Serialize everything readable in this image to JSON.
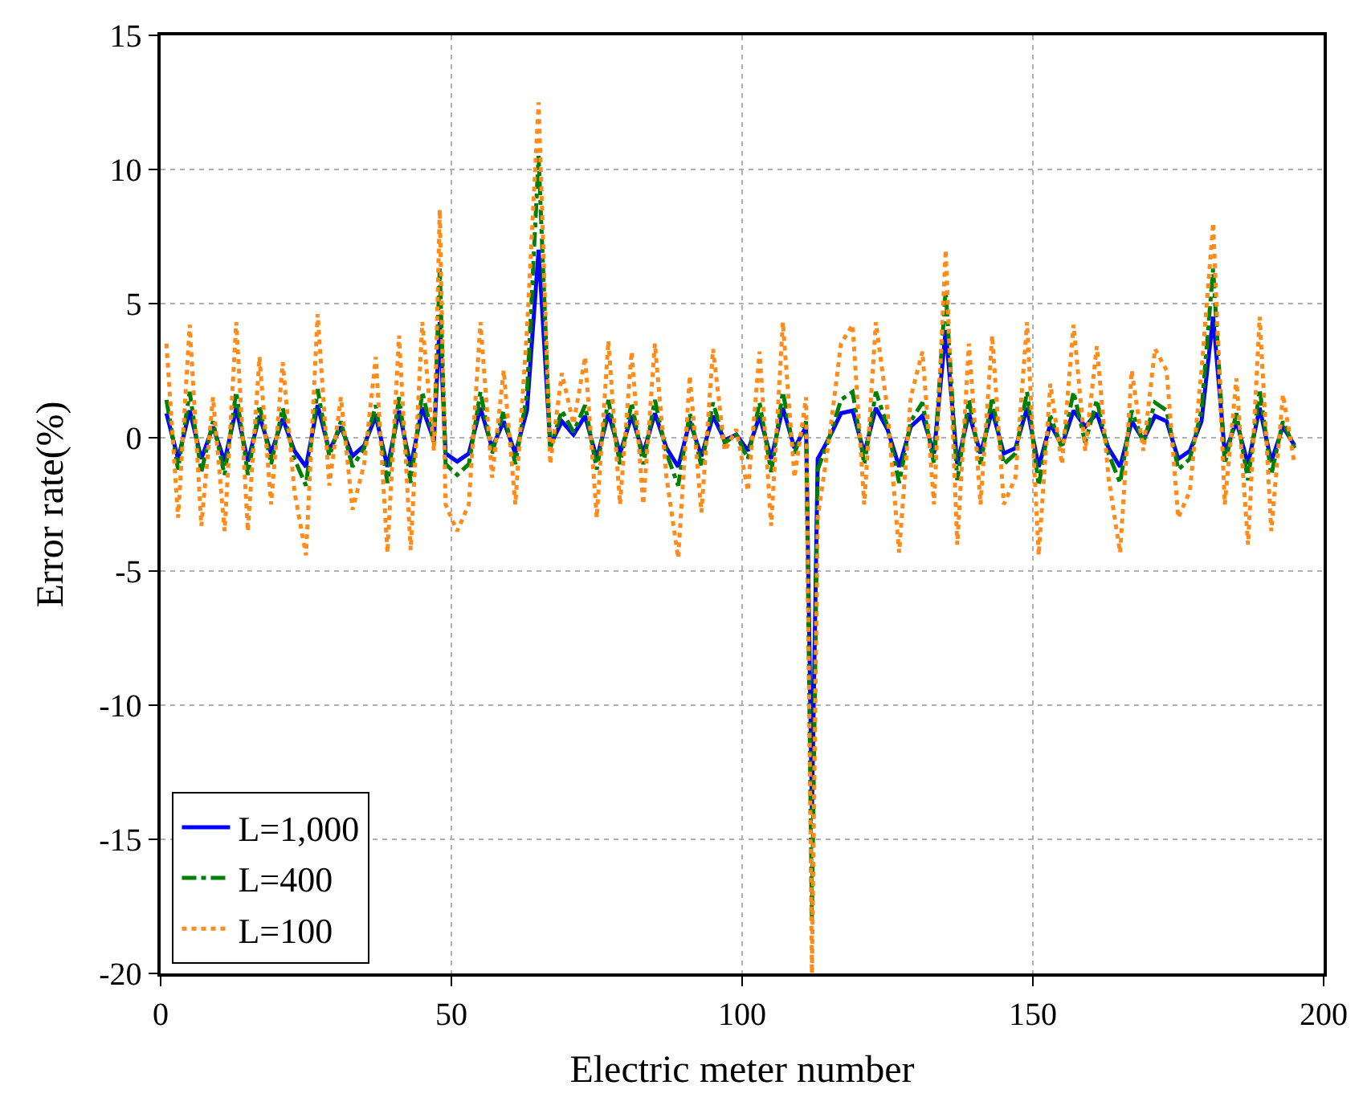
{
  "chart_data": {
    "type": "line",
    "xlabel": "Electric meter number",
    "ylabel": "Error rate(%)",
    "x": [
      1,
      3,
      5,
      7,
      9,
      11,
      13,
      15,
      17,
      19,
      21,
      23,
      25,
      27,
      29,
      31,
      33,
      35,
      37,
      39,
      41,
      43,
      45,
      47,
      48,
      49,
      51,
      53,
      55,
      57,
      59,
      61,
      63,
      65,
      67,
      69,
      71,
      73,
      75,
      77,
      79,
      81,
      83,
      85,
      87,
      89,
      91,
      93,
      95,
      97,
      99,
      101,
      103,
      105,
      107,
      109,
      111,
      112,
      113,
      115,
      117,
      119,
      121,
      123,
      125,
      127,
      129,
      131,
      133,
      135,
      137,
      139,
      141,
      143,
      145,
      147,
      149,
      151,
      153,
      155,
      157,
      159,
      161,
      163,
      165,
      167,
      169,
      171,
      173,
      175,
      177,
      179,
      181,
      183,
      185,
      187,
      189,
      191,
      193,
      195
    ],
    "series": [
      {
        "name": "L=1,000",
        "color": "#0000ff",
        "line_style": "solid",
        "values": [
          0.9,
          -0.8,
          1,
          -0.8,
          0.4,
          -0.9,
          1.1,
          -0.9,
          0.8,
          -0.6,
          0.7,
          -0.5,
          -1.1,
          1.2,
          -0.5,
          0.4,
          -0.7,
          -0.3,
          0.8,
          -1.1,
          1,
          -1.1,
          1.1,
          -0.1,
          4.3,
          -0.6,
          -0.9,
          -0.6,
          1.1,
          -0.4,
          0.6,
          -0.6,
          1,
          7,
          -0.3,
          0.6,
          0.1,
          0.8,
          -0.8,
          0.9,
          -0.6,
          0.8,
          -0.6,
          0.9,
          -0.4,
          -1.1,
          0.6,
          -0.7,
          0.8,
          -0.1,
          0.1,
          -0.5,
          0.8,
          -0.8,
          1.1,
          -0.4,
          0.4,
          -14,
          -0.8,
          0,
          0.9,
          1,
          -0.6,
          1.1,
          0.3,
          -1.1,
          0.4,
          0.8,
          -0.6,
          4,
          -1,
          0.9,
          -0.6,
          1,
          -0.6,
          -0.4,
          1.1,
          -1.1,
          0.5,
          -0.3,
          1,
          0.4,
          0.9,
          -0.4,
          -1.1,
          0.6,
          -0.1,
          0.8,
          0.6,
          -0.8,
          -0.5,
          0.6,
          4.5,
          -0.6,
          0.6,
          -1,
          1.1,
          -0.9,
          0.4,
          -0.3
        ]
      },
      {
        "name": "L=400",
        "color": "#008000",
        "line_style": "dashed",
        "values": [
          1.4,
          -1.2,
          1.7,
          -1.3,
          0.6,
          -1.4,
          1.7,
          -1.4,
          1.2,
          -1,
          1.1,
          -0.8,
          -1.8,
          1.8,
          -0.7,
          0.6,
          -1.1,
          -0.4,
          1.2,
          -1.7,
          1.5,
          -1.7,
          1.7,
          -0.2,
          6.3,
          -1,
          -1.4,
          -1,
          1.7,
          -0.6,
          1,
          -1,
          1.6,
          10.5,
          -0.4,
          1,
          0.2,
          1.2,
          -1.2,
          1.4,
          -1,
          1.3,
          -1,
          1.4,
          -0.6,
          -1.8,
          0.9,
          -1.1,
          1.3,
          -0.2,
          0.1,
          -0.8,
          1.3,
          -1.3,
          1.7,
          -0.6,
          0.6,
          -18,
          -1.2,
          0,
          1.4,
          1.7,
          -1,
          1.7,
          0.4,
          -1.7,
          0.6,
          1.3,
          -1,
          5.5,
          -1.6,
          1.4,
          -1,
          1.5,
          -1,
          -0.6,
          1.7,
          -1.8,
          0.8,
          -0.4,
          1.7,
          -0.2,
          1.4,
          -0.6,
          -1.7,
          1,
          -0.2,
          1.3,
          1,
          -1.2,
          -0.8,
          1,
          6.3,
          -1,
          0.9,
          -1.6,
          1.8,
          -1.4,
          0.6,
          -0.4
        ]
      },
      {
        "name": "L=100",
        "color": "#ff8c1a",
        "line_style": "dotted",
        "values": [
          3.5,
          -3,
          4.2,
          -3.3,
          1.5,
          -3.5,
          4.3,
          -3.5,
          3,
          -2.5,
          2.8,
          -2,
          -4.4,
          4.6,
          -1.8,
          1.5,
          -2.7,
          -1,
          3,
          -4.3,
          3.8,
          -4.2,
          4.3,
          -0.5,
          8.5,
          -2.5,
          -3.5,
          -2.5,
          4.3,
          -1.5,
          2.5,
          -2.5,
          4,
          12.5,
          -1,
          2.4,
          0.5,
          3,
          -3,
          3.6,
          -2.5,
          3.2,
          -2.5,
          3.5,
          -1.5,
          -4.5,
          2.3,
          -2.8,
          3.3,
          -0.5,
          0.3,
          -2,
          3.2,
          -3.3,
          4.3,
          -1.5,
          1.5,
          -20,
          -3,
          0,
          3.5,
          4.2,
          -2.5,
          4.3,
          1,
          -4.3,
          1.5,
          3.2,
          -2.5,
          7,
          -4,
          3.5,
          -2.5,
          3.8,
          -2.5,
          -1.5,
          4.3,
          -4.4,
          2,
          -1,
          4.2,
          -0.5,
          3.4,
          -1.5,
          -4.3,
          2.5,
          -0.5,
          3.3,
          2.5,
          -3,
          -2,
          2.5,
          8,
          -2.5,
          2.2,
          -4,
          4.5,
          -3.5,
          1.6,
          -1
        ]
      }
    ],
    "xlim": [
      0,
      200
    ],
    "xticks": [
      0,
      50,
      100,
      150,
      200
    ],
    "ylim": [
      -20,
      15
    ],
    "yticks": [
      -20,
      -15,
      -10,
      -5,
      0,
      5,
      10,
      15
    ],
    "grid": true,
    "legend": "bottom left"
  }
}
